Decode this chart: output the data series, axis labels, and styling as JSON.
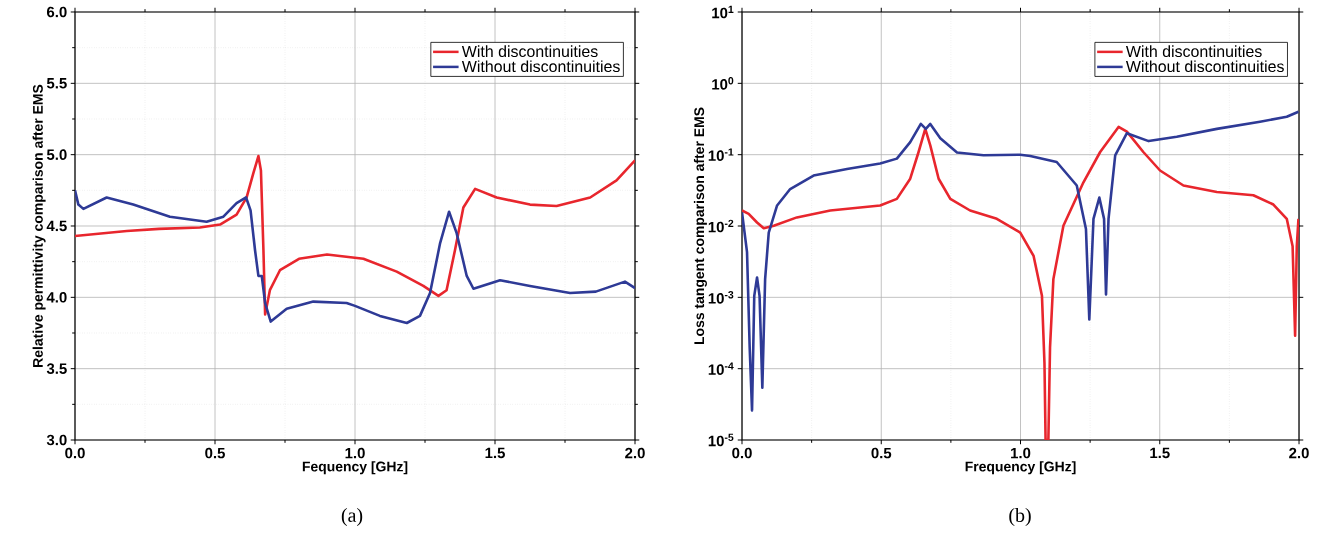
{
  "chart_data": [
    {
      "type": "line",
      "xlabel": "Fequency [GHz]",
      "ylabel": "Relative permittivity comparison after EMS",
      "annotations": [
        "(a)"
      ],
      "xlim": [
        0,
        2
      ],
      "ylim": [
        3,
        6
      ],
      "xticks": [
        {
          "value": 0,
          "label": "0.0"
        },
        {
          "value": 0.5,
          "label": "0.5"
        },
        {
          "value": 1,
          "label": "1.0"
        },
        {
          "value": 1.5,
          "label": "1.5"
        },
        {
          "value": 2,
          "label": "2.0"
        }
      ],
      "yticks": [
        {
          "value": 3,
          "label": "3.0"
        },
        {
          "value": 3.5,
          "label": "3.5"
        },
        {
          "value": 4,
          "label": "4.0"
        },
        {
          "value": 4.5,
          "label": "4.5"
        },
        {
          "value": 5,
          "label": "5.0"
        },
        {
          "value": 5.5,
          "label": "5.5"
        },
        {
          "value": 6,
          "label": "6.0"
        }
      ],
      "grid": true,
      "legend": "top right",
      "series": [
        {
          "name": "With discontinuities",
          "color": "#e8262d",
          "x": [
            0,
            0.185,
            0.3,
            0.446,
            0.518,
            0.577,
            0.613,
            0.637,
            0.655,
            0.664,
            0.673,
            0.679,
            0.696,
            0.732,
            0.8,
            0.9,
            1.03,
            1.149,
            1.244,
            1.298,
            1.327,
            1.357,
            1.387,
            1.429,
            1.506,
            1.625,
            1.72,
            1.84,
            1.934,
            2.0
          ],
          "values": [
            4.43,
            4.465,
            4.48,
            4.49,
            4.51,
            4.58,
            4.7,
            4.87,
            4.99,
            4.89,
            4.33,
            3.88,
            4.05,
            4.19,
            4.27,
            4.3,
            4.27,
            4.18,
            4.08,
            4.01,
            4.05,
            4.33,
            4.63,
            4.76,
            4.7,
            4.65,
            4.64,
            4.7,
            4.82,
            4.96
          ]
        },
        {
          "name": "Without discontinuities",
          "color": "#2e3a96",
          "x": [
            0,
            0.012,
            0.03,
            0.113,
            0.208,
            0.339,
            0.47,
            0.53,
            0.577,
            0.611,
            0.627,
            0.643,
            0.655,
            0.667,
            0.679,
            0.699,
            0.756,
            0.851,
            0.97,
            1.0,
            1.089,
            1.185,
            1.232,
            1.268,
            1.304,
            1.336,
            1.363,
            1.399,
            1.423,
            1.518,
            1.625,
            1.768,
            1.86,
            1.964,
            2.0
          ],
          "values": [
            4.75,
            4.65,
            4.62,
            4.7,
            4.65,
            4.565,
            4.53,
            4.565,
            4.66,
            4.7,
            4.61,
            4.33,
            4.15,
            4.15,
            3.96,
            3.83,
            3.92,
            3.97,
            3.96,
            3.94,
            3.87,
            3.82,
            3.87,
            4.03,
            4.38,
            4.6,
            4.45,
            4.15,
            4.06,
            4.12,
            4.08,
            4.03,
            4.04,
            4.11,
            4.065
          ]
        }
      ]
    },
    {
      "type": "line",
      "xlabel": "Frequency [GHz]",
      "ylabel": "Loss tangent comparison after EMS",
      "annotations": [
        "(b)"
      ],
      "xlim": [
        0,
        2
      ],
      "ylim": [
        1e-05,
        10
      ],
      "log": "y",
      "xticks": [
        {
          "value": 0,
          "label": "0.0"
        },
        {
          "value": 0.5,
          "label": "0.5"
        },
        {
          "value": 1,
          "label": "1.0"
        },
        {
          "value": 1.5,
          "label": "1.5"
        },
        {
          "value": 2,
          "label": "2.0"
        }
      ],
      "yticks": [
        {
          "value": 1e-05,
          "label": "10$^{-5}$"
        },
        {
          "value": 0.0001,
          "label": "10$^{-4}$"
        },
        {
          "value": 0.001,
          "label": "10$^{-3}$"
        },
        {
          "value": 0.01,
          "label": "10$^{-2}$"
        },
        {
          "value": 0.1,
          "label": "10$^{-1}$"
        },
        {
          "value": 1,
          "label": "10$^{0}$"
        },
        {
          "value": 10,
          "label": "10$^{1}$"
        }
      ],
      "grid": true,
      "legend": "top right",
      "series": [
        {
          "name": "With discontinuities",
          "color": "#e8262d",
          "x": [
            0,
            0.024,
            0.054,
            0.078,
            0.114,
            0.197,
            0.317,
            0.496,
            0.556,
            0.604,
            0.634,
            0.658,
            0.676,
            0.706,
            0.748,
            0.819,
            0.915,
            0.999,
            1.047,
            1.077,
            1.086,
            1.09,
            1.1,
            1.106,
            1.118,
            1.154,
            1.226,
            1.286,
            1.352,
            1.382,
            1.441,
            1.501,
            1.585,
            1.705,
            1.836,
            1.908,
            1.956,
            1.977,
            1.986,
            1.992,
            1.998
          ],
          "values": [
            0.0165,
            0.0148,
            0.0112,
            0.0093,
            0.0101,
            0.0132,
            0.0165,
            0.0194,
            0.024,
            0.046,
            0.109,
            0.23,
            0.135,
            0.046,
            0.024,
            0.0165,
            0.0126,
            0.0081,
            0.0038,
            0.00105,
            0.00012,
            1e-05,
            1e-05,
            0.0002,
            0.0018,
            0.0101,
            0.041,
            0.109,
            0.245,
            0.21,
            0.109,
            0.06,
            0.037,
            0.03,
            0.027,
            0.02,
            0.0126,
            0.0052,
            0.00029,
            0.0052,
            0.0126
          ]
        },
        {
          "name": "Without discontinuities",
          "color": "#2e3a96",
          "x": [
            0,
            0.018,
            0.0275,
            0.036,
            0.044,
            0.054,
            0.063,
            0.073,
            0.083,
            0.096,
            0.126,
            0.173,
            0.257,
            0.377,
            0.496,
            0.556,
            0.604,
            0.642,
            0.66,
            0.676,
            0.712,
            0.772,
            0.867,
            0.999,
            1.035,
            1.13,
            1.202,
            1.235,
            1.247,
            1.262,
            1.283,
            1.3,
            1.307,
            1.316,
            1.34,
            1.382,
            1.46,
            1.561,
            1.705,
            1.86,
            1.956,
            1.998
          ],
          "values": [
            0.0155,
            0.0043,
            0.0002,
            2.6e-05,
            0.00105,
            0.0019,
            0.00105,
            5.4e-05,
            0.0018,
            0.0081,
            0.0194,
            0.033,
            0.051,
            0.063,
            0.075,
            0.088,
            0.15,
            0.27,
            0.23,
            0.27,
            0.17,
            0.107,
            0.098,
            0.1,
            0.096,
            0.079,
            0.037,
            0.0091,
            0.00049,
            0.0126,
            0.025,
            0.0126,
            0.0011,
            0.0126,
            0.098,
            0.2,
            0.155,
            0.178,
            0.23,
            0.29,
            0.34,
            0.4
          ]
        }
      ]
    }
  ]
}
